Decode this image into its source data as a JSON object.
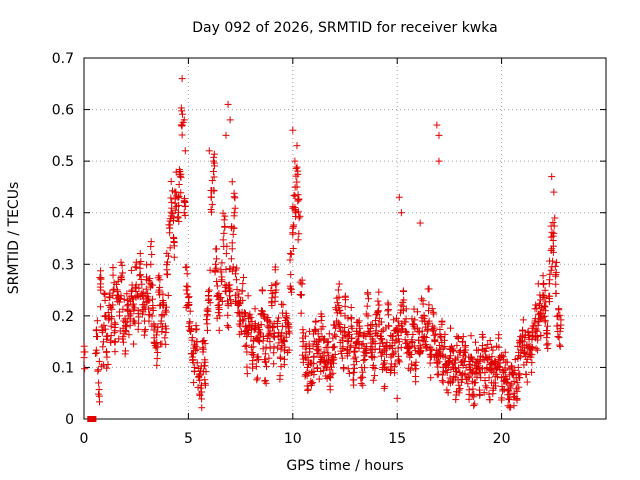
{
  "chart_data": {
    "type": "scatter",
    "title": "Day 092 of 2026, SRMTID for receiver kwka",
    "xlabel": "GPS time / hours",
    "ylabel": "SRMTID / TECUs",
    "xlim": [
      0,
      25
    ],
    "ylim": [
      0,
      0.7
    ],
    "xticks": [
      0,
      5,
      10,
      15,
      20
    ],
    "xtick_labels": [
      "0",
      "5",
      "10",
      "15",
      "20"
    ],
    "yticks": [
      0,
      0.1,
      0.2,
      0.3,
      0.4,
      0.5,
      0.6,
      0.7
    ],
    "ytick_labels": [
      "0",
      "0.1",
      "0.2",
      "0.3",
      "0.4",
      "0.5",
      "0.6",
      "0.7"
    ],
    "grid": true,
    "marker": "+",
    "color": "#e00000",
    "series": [
      {
        "name": "SRMTID",
        "x": [
          0.0,
          0.3,
          0.45,
          0.6,
          0.7,
          0.8,
          0.9,
          1.0,
          1.1,
          1.2,
          1.3,
          1.4,
          1.5,
          1.6,
          1.7,
          1.8,
          1.9,
          2.0,
          2.1,
          2.2,
          2.3,
          2.4,
          2.5,
          2.6,
          2.7,
          2.8,
          2.9,
          3.0,
          3.1,
          3.2,
          3.3,
          3.4,
          3.5,
          3.6,
          3.7,
          3.8,
          3.9,
          4.0,
          4.1,
          4.2,
          4.3,
          4.4,
          4.5,
          4.6,
          4.7,
          4.8,
          4.9,
          5.0,
          5.1,
          5.2,
          5.3,
          5.4,
          5.5,
          5.6,
          5.7,
          5.8,
          5.9,
          6.0,
          6.1,
          6.2,
          6.3,
          6.4,
          6.5,
          6.6,
          6.7,
          6.8,
          6.9,
          7.0,
          7.1,
          7.2,
          7.3,
          7.4,
          7.5,
          7.6,
          7.7,
          7.8,
          7.9,
          8.0,
          8.1,
          8.2,
          8.3,
          8.4,
          8.5,
          8.6,
          8.7,
          8.8,
          8.9,
          9.0,
          9.1,
          9.2,
          9.3,
          9.4,
          9.5,
          9.6,
          9.7,
          9.8,
          9.9,
          10.0,
          10.1,
          10.2,
          10.3,
          10.4,
          10.5,
          10.6,
          10.7,
          10.8,
          10.9,
          11.0,
          11.1,
          11.2,
          11.3,
          11.4,
          11.5,
          11.6,
          11.7,
          11.8,
          11.9,
          12.0,
          12.1,
          12.2,
          12.3,
          12.4,
          12.5,
          12.6,
          12.7,
          12.8,
          12.9,
          13.0,
          13.1,
          13.2,
          13.3,
          13.4,
          13.5,
          13.6,
          13.7,
          13.8,
          13.9,
          14.0,
          14.1,
          14.2,
          14.3,
          14.4,
          14.5,
          14.6,
          14.7,
          14.8,
          14.9,
          15.0,
          15.1,
          15.2,
          15.3,
          15.4,
          15.5,
          15.6,
          15.7,
          15.8,
          15.9,
          16.0,
          16.1,
          16.2,
          16.3,
          16.4,
          16.5,
          16.6,
          16.7,
          16.8,
          16.9,
          17.0,
          17.1,
          17.2,
          17.3,
          17.4,
          17.5,
          17.6,
          17.7,
          17.8,
          17.9,
          18.0,
          18.1,
          18.2,
          18.3,
          18.4,
          18.5,
          18.6,
          18.7,
          18.8,
          18.9,
          19.0,
          19.1,
          19.2,
          19.3,
          19.4,
          19.5,
          19.6,
          19.7,
          19.8,
          19.9,
          20.0,
          20.1,
          20.2,
          20.3,
          20.4,
          20.5,
          20.6,
          20.7,
          20.8,
          20.9,
          21.0,
          21.1,
          21.2,
          21.3,
          21.4,
          21.5,
          21.6,
          21.7,
          21.8,
          21.9,
          22.0,
          22.1,
          22.2,
          22.3,
          22.4,
          22.5,
          22.6,
          22.7,
          22.8
        ],
        "y": [
          0.13,
          0.0,
          0.0,
          0.16,
          0.07,
          0.25,
          0.14,
          0.2,
          0.12,
          0.22,
          0.18,
          0.25,
          0.15,
          0.24,
          0.2,
          0.27,
          0.19,
          0.17,
          0.23,
          0.2,
          0.25,
          0.19,
          0.26,
          0.21,
          0.28,
          0.24,
          0.19,
          0.27,
          0.23,
          0.3,
          0.22,
          0.18,
          0.14,
          0.25,
          0.19,
          0.22,
          0.18,
          0.28,
          0.37,
          0.42,
          0.35,
          0.44,
          0.39,
          0.48,
          0.57,
          0.4,
          0.25,
          0.22,
          0.17,
          0.12,
          0.1,
          0.15,
          0.08,
          0.06,
          0.13,
          0.11,
          0.2,
          0.25,
          0.43,
          0.48,
          0.3,
          0.24,
          0.2,
          0.27,
          0.36,
          0.29,
          0.22,
          0.25,
          0.33,
          0.4,
          0.27,
          0.22,
          0.19,
          0.23,
          0.17,
          0.13,
          0.2,
          0.16,
          0.14,
          0.18,
          0.12,
          0.15,
          0.21,
          0.16,
          0.11,
          0.19,
          0.15,
          0.22,
          0.14,
          0.25,
          0.16,
          0.12,
          0.18,
          0.15,
          0.2,
          0.17,
          0.28,
          0.37,
          0.41,
          0.45,
          0.39,
          0.24,
          0.15,
          0.12,
          0.1,
          0.13,
          0.09,
          0.12,
          0.17,
          0.14,
          0.11,
          0.16,
          0.13,
          0.1,
          0.15,
          0.08,
          0.12,
          0.14,
          0.19,
          0.22,
          0.17,
          0.14,
          0.2,
          0.16,
          0.13,
          0.18,
          0.09,
          0.12,
          0.15,
          0.18,
          0.1,
          0.13,
          0.16,
          0.2,
          0.17,
          0.14,
          0.12,
          0.18,
          0.21,
          0.16,
          0.13,
          0.1,
          0.14,
          0.18,
          0.12,
          0.16,
          0.13,
          0.17,
          0.15,
          0.18,
          0.21,
          0.17,
          0.14,
          0.12,
          0.15,
          0.18,
          0.11,
          0.17,
          0.13,
          0.19,
          0.16,
          0.14,
          0.21,
          0.12,
          0.18,
          0.15,
          0.11,
          0.13,
          0.16,
          0.1,
          0.12,
          0.09,
          0.11,
          0.14,
          0.1,
          0.08,
          0.12,
          0.09,
          0.11,
          0.13,
          0.1,
          0.08,
          0.12,
          0.09,
          0.07,
          0.11,
          0.1,
          0.08,
          0.12,
          0.09,
          0.1,
          0.08,
          0.11,
          0.09,
          0.07,
          0.1,
          0.12,
          0.08,
          0.09,
          0.11,
          0.07,
          0.06,
          0.09,
          0.05,
          0.08,
          0.1,
          0.12,
          0.15,
          0.13,
          0.11,
          0.14,
          0.12,
          0.16,
          0.19,
          0.17,
          0.22,
          0.2,
          0.24,
          0.21,
          0.18,
          0.27,
          0.33,
          0.36,
          0.28,
          0.2,
          0.17
        ],
        "outliers_x": [
          4.7,
          4.8,
          4.85,
          6.0,
          6.2,
          6.9,
          7.0,
          7.1,
          10.0,
          10.1,
          10.2,
          15.1,
          15.2,
          16.1,
          16.9,
          17.0,
          22.4,
          22.5,
          6.8,
          17.0,
          15.0
        ],
        "outliers_y": [
          0.66,
          0.58,
          0.52,
          0.52,
          0.5,
          0.61,
          0.58,
          0.46,
          0.56,
          0.5,
          0.53,
          0.43,
          0.4,
          0.38,
          0.57,
          0.55,
          0.47,
          0.44,
          0.55,
          0.5,
          0.04
        ]
      }
    ]
  }
}
